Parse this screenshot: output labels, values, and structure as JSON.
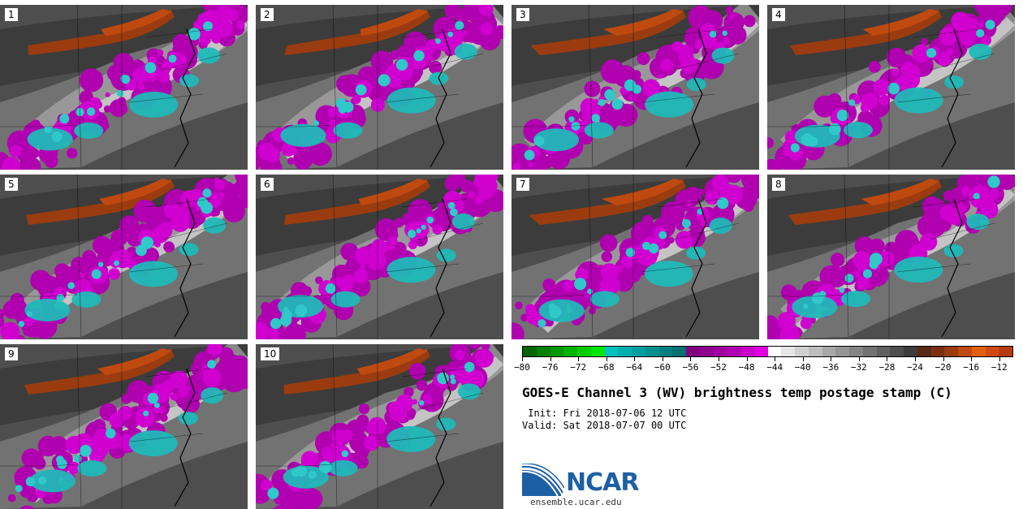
{
  "panels": [
    {
      "label": "1"
    },
    {
      "label": "2"
    },
    {
      "label": "3"
    },
    {
      "label": "4"
    },
    {
      "label": "5"
    },
    {
      "label": "6"
    },
    {
      "label": "7"
    },
    {
      "label": "8"
    },
    {
      "label": "9"
    },
    {
      "label": "10"
    }
  ],
  "colorbar": {
    "colors": [
      "#006400",
      "#008000",
      "#009900",
      "#00b200",
      "#00cc00",
      "#00e600",
      "#00c0c0",
      "#00b0b0",
      "#00a0a0",
      "#009090",
      "#008080",
      "#007070",
      "#800080",
      "#900090",
      "#a000a0",
      "#b000b0",
      "#c800c8",
      "#e000e0",
      "#ffffff",
      "#e6e6e6",
      "#d0d0d0",
      "#bdbdbd",
      "#a8a8a8",
      "#969696",
      "#848484",
      "#727272",
      "#606060",
      "#4e4e4e",
      "#3c3c3c",
      "#5a2a14",
      "#7a3010",
      "#9a3c10",
      "#bf4a10",
      "#e06010",
      "#d04a10",
      "#b83a10"
    ],
    "tick_labels": [
      "−80",
      "−76",
      "−72",
      "−68",
      "−64",
      "−60",
      "−56",
      "−52",
      "−48",
      "−44",
      "−40",
      "−36",
      "−32",
      "−28",
      "−24",
      "−20",
      "−16",
      "−12"
    ],
    "tick_values": [
      -80,
      -76,
      -72,
      -68,
      -64,
      -60,
      -56,
      -52,
      -48,
      -44,
      -40,
      -36,
      -32,
      -28,
      -24,
      -20,
      -16,
      -12
    ],
    "range": [
      -80,
      -10
    ]
  },
  "title": "GOES-E Channel 3 (WV) brightness temp postage stamp (C)",
  "init": " Init: Fri 2018-07-06 12 UTC",
  "valid": "Valid: Sat 2018-07-07 00 UTC",
  "logo": {
    "text": "NCAR",
    "url": "ensemble.ucar.edu",
    "icon": "ncar-logo-icon",
    "color": "#1d5fa3"
  }
}
